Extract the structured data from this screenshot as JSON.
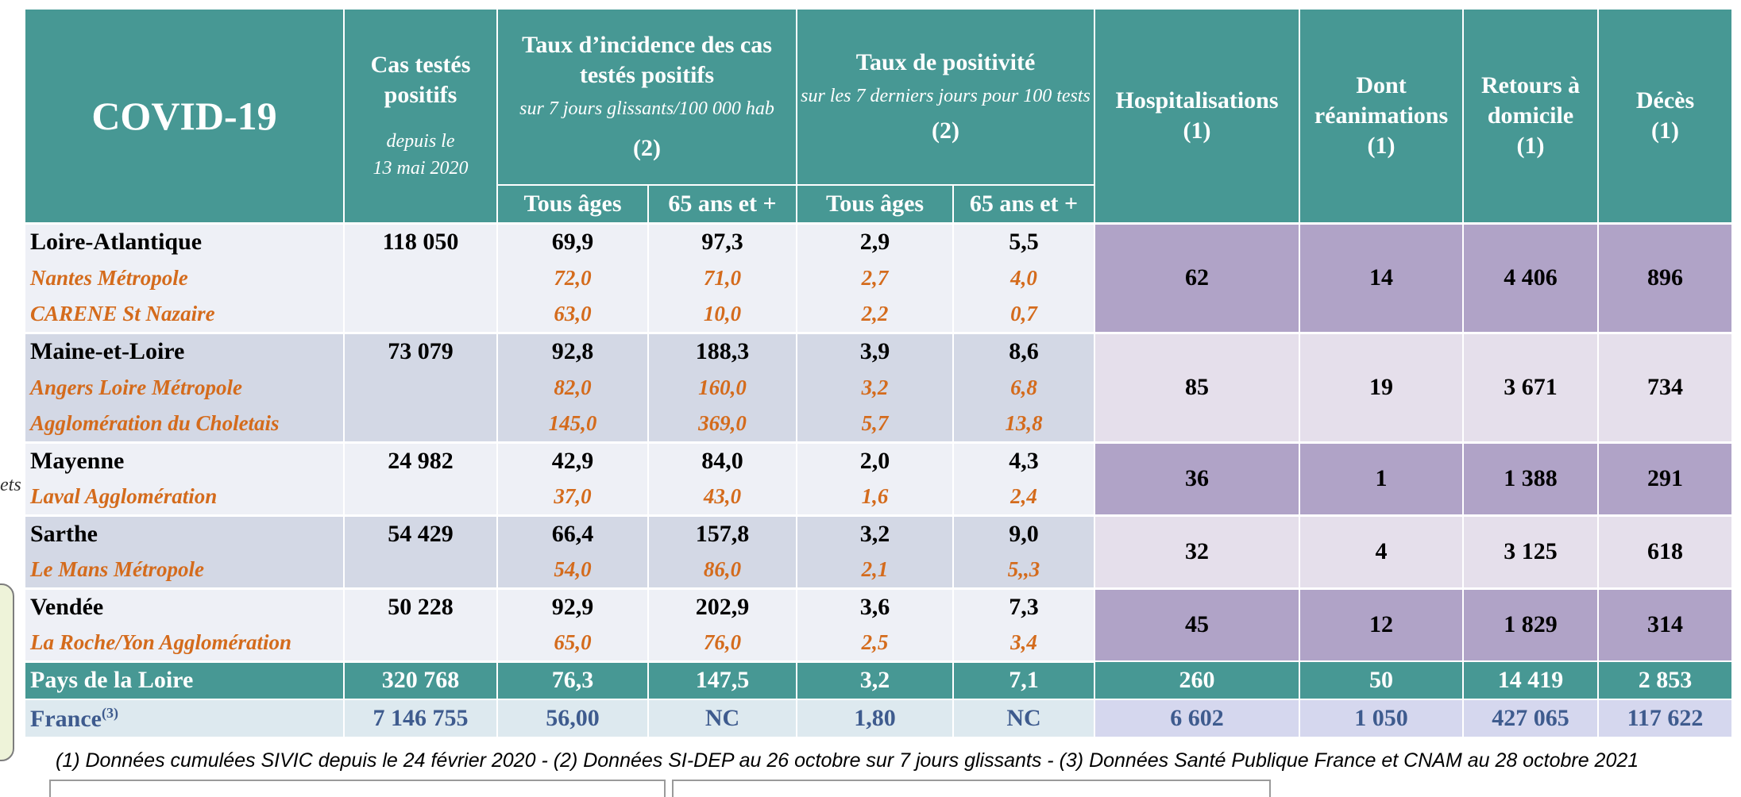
{
  "edge_text": "ets",
  "header": {
    "title": "COVID-19",
    "cas_label": "Cas testés positifs",
    "cas_sub1": "depuis le",
    "cas_sub2": "13 mai 2020",
    "incidence_label": "Taux d’incidence des cas testés positifs",
    "incidence_sub": "sur 7 jours glissants/100 000 hab",
    "incidence_note": "(2)",
    "positivite_label": "Taux de positivité",
    "positivite_sub": "sur les 7 derniers jours pour 100 tests",
    "positivite_note": "(2)",
    "hosp_label": "Hospitalisations",
    "hosp_note": "(1)",
    "rea_label": "Dont réanimations",
    "rea_note": "(1)",
    "retours_label": "Retours à domicile",
    "retours_note": "(1)",
    "deces_label": "Décès",
    "deces_note": "(1)",
    "tous_ages": "Tous âges",
    "plus65": "65 ans et +"
  },
  "departments": [
    {
      "name": "Loire-Atlantique",
      "cas": "118 050",
      "inc_all": "69,9",
      "inc_65": "97,3",
      "pos_all": "2,9",
      "pos_65": "5,5",
      "hosp": "62",
      "rea": "14",
      "retours": "4 406",
      "deces": "896",
      "subs": [
        {
          "name": "Nantes Métropole",
          "inc_all": "72,0",
          "inc_65": "71,0",
          "pos_all": "2,7",
          "pos_65": "4,0"
        },
        {
          "name": "CARENE St Nazaire",
          "inc_all": "63,0",
          "inc_65": "10,0",
          "pos_all": "2,2",
          "pos_65": "0,7"
        }
      ]
    },
    {
      "name": "Maine-et-Loire",
      "cas": "73 079",
      "inc_all": "92,8",
      "inc_65": "188,3",
      "pos_all": "3,9",
      "pos_65": "8,6",
      "hosp": "85",
      "rea": "19",
      "retours": "3 671",
      "deces": "734",
      "subs": [
        {
          "name": "Angers Loire Métropole",
          "inc_all": "82,0",
          "inc_65": "160,0",
          "pos_all": "3,2",
          "pos_65": "6,8"
        },
        {
          "name": "Agglomération du Choletais",
          "inc_all": "145,0",
          "inc_65": "369,0",
          "pos_all": "5,7",
          "pos_65": "13,8"
        }
      ]
    },
    {
      "name": "Mayenne",
      "cas": "24 982",
      "inc_all": "42,9",
      "inc_65": "84,0",
      "pos_all": "2,0",
      "pos_65": "4,3",
      "hosp": "36",
      "rea": "1",
      "retours": "1 388",
      "deces": "291",
      "subs": [
        {
          "name": "Laval Agglomération",
          "inc_all": "37,0",
          "inc_65": "43,0",
          "pos_all": "1,6",
          "pos_65": "2,4"
        }
      ]
    },
    {
      "name": "Sarthe",
      "cas": "54 429",
      "inc_all": "66,4",
      "inc_65": "157,8",
      "pos_all": "3,2",
      "pos_65": "9,0",
      "hosp": "32",
      "rea": "4",
      "retours": "3 125",
      "deces": "618",
      "subs": [
        {
          "name": "Le Mans Métropole",
          "inc_all": "54,0",
          "inc_65": "86,0",
          "pos_all": "2,1",
          "pos_65": "5,,3"
        }
      ]
    },
    {
      "name": "Vendée",
      "cas": "50 228",
      "inc_all": "92,9",
      "inc_65": "202,9",
      "pos_all": "3,6",
      "pos_65": "7,3",
      "hosp": "45",
      "rea": "12",
      "retours": "1 829",
      "deces": "314",
      "subs": [
        {
          "name": "La Roche/Yon  Agglomération",
          "inc_all": "65,0",
          "inc_65": "76,0",
          "pos_all": "2,5",
          "pos_65": "3,4"
        }
      ]
    }
  ],
  "region": {
    "name": "Pays de la Loire",
    "cas": "320 768",
    "inc_all": "76,3",
    "inc_65": "147,5",
    "pos_all": "3,2",
    "pos_65": "7,1",
    "hosp": "260",
    "rea": "50",
    "retours": "14 419",
    "deces": "2 853"
  },
  "france": {
    "name": "France",
    "note": "(3)",
    "cas": "7 146 755",
    "inc_all": "56,00",
    "inc_65": "NC",
    "pos_all": "1,80",
    "pos_65": "NC",
    "hosp": "6 602",
    "rea": "1 050",
    "retours": "427 065",
    "deces": "117 622"
  },
  "footnote": "(1) Données cumulées SIVIC depuis le 24 février 2020 - (2) Données SI-DEP au 26 octobre sur 7 jours glissants - (3) Données Santé Publique France et CNAM au 28 octobre 2021",
  "colors": {
    "header_teal": "#479894",
    "sub_orange": "#d46b1c",
    "france_blue": "#3e5b8e",
    "purple_dark": "#b0a3c7",
    "purple_light": "#e5dfeb"
  }
}
